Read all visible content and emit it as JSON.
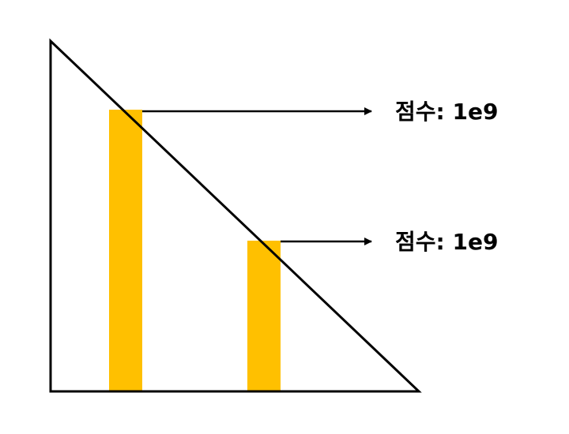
{
  "diagram": {
    "colors": {
      "bar": "#FFC000",
      "line": "#000000",
      "background": "#FFFFFF"
    },
    "annotations": [
      {
        "label": "점수: 1e9"
      },
      {
        "label": "점수: 1e9"
      }
    ]
  }
}
